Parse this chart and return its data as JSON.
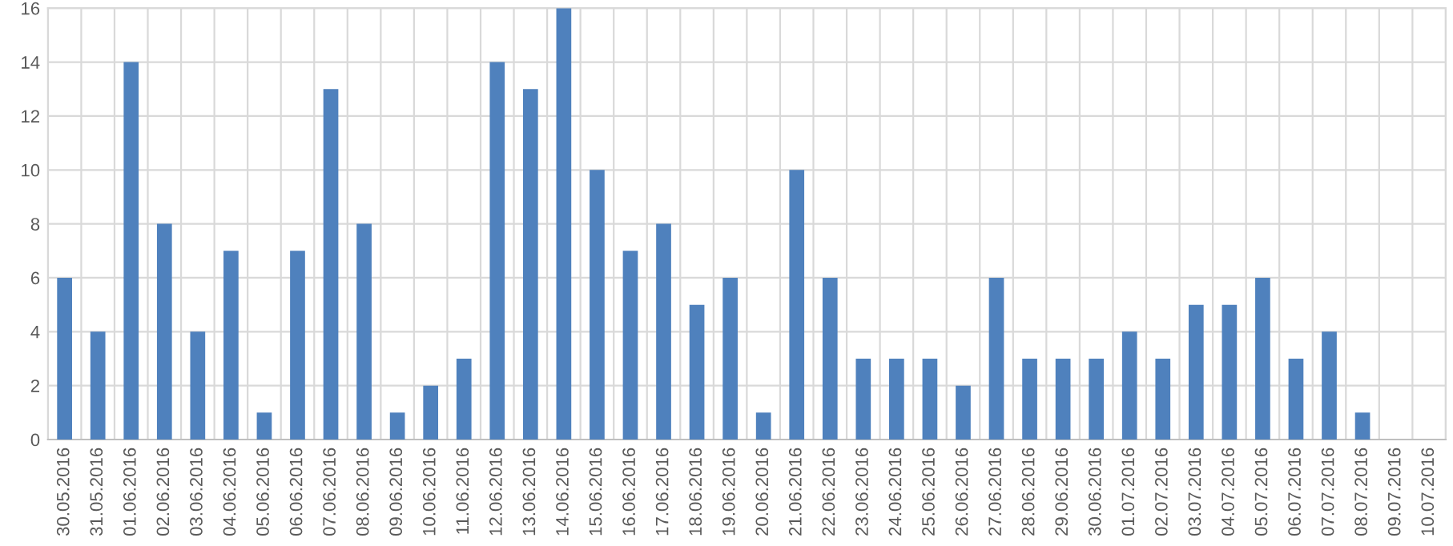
{
  "chart_data": {
    "type": "bar",
    "categories": [
      "30.05.2016",
      "31.05.2016",
      "01.06.2016",
      "02.06.2016",
      "03.06.2016",
      "04.06.2016",
      "05.06.2016",
      "06.06.2016",
      "07.06.2016",
      "08.06.2016",
      "09.06.2016",
      "10.06.2016",
      "11.06.2016",
      "12.06.2016",
      "13.06.2016",
      "14.06.2016",
      "15.06.2016",
      "16.06.2016",
      "17.06.2016",
      "18.06.2016",
      "19.06.2016",
      "20.06.2016",
      "21.06.2016",
      "22.06.2016",
      "23.06.2016",
      "24.06.2016",
      "25.06.2016",
      "26.06.2016",
      "27.06.2016",
      "28.06.2016",
      "29.06.2016",
      "30.06.2016",
      "01.07.2016",
      "02.07.2016",
      "03.07.2016",
      "04.07.2016",
      "05.07.2016",
      "06.07.2016",
      "07.07.2016",
      "08.07.2016",
      "09.07.2016",
      "10.07.2016"
    ],
    "values": [
      6,
      4,
      14,
      8,
      4,
      7,
      1,
      7,
      13,
      8,
      1,
      2,
      3,
      14,
      13,
      16,
      10,
      7,
      8,
      5,
      6,
      1,
      10,
      6,
      3,
      3,
      3,
      2,
      6,
      3,
      3,
      3,
      4,
      3,
      5,
      5,
      6,
      3,
      4,
      1,
      0,
      0
    ],
    "color": "#4f81bd",
    "ylim": [
      0,
      16
    ],
    "yticks": [
      0,
      2,
      4,
      6,
      8,
      10,
      12,
      14,
      16
    ],
    "grid": true
  }
}
